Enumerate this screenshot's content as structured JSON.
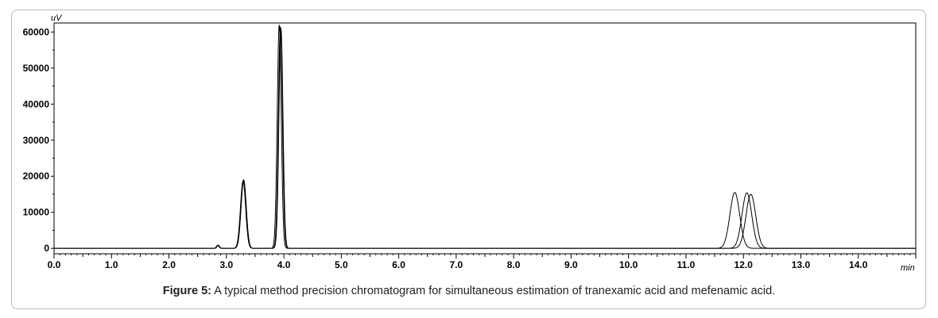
{
  "caption": {
    "label": "Figure 5:",
    "text": " A typical method precision chromatogram for simultaneous estimation of tranexamic acid and mefenamic acid."
  },
  "chart_data": {
    "type": "line",
    "title": "",
    "xlabel": "min",
    "ylabel": "uV",
    "xlim": [
      0,
      15
    ],
    "ylim": [
      -1500,
      62500
    ],
    "x_ticks": [
      "0.0",
      "1.0",
      "2.0",
      "3.0",
      "4.0",
      "5.0",
      "6.0",
      "7.0",
      "8.0",
      "9.0",
      "10.0",
      "11.0",
      "12.0",
      "13.0",
      "14.0"
    ],
    "y_ticks": [
      "0",
      "10000",
      "20000",
      "30000",
      "40000",
      "50000",
      "60000"
    ],
    "grid": false,
    "line_color": "#000000",
    "series": [
      {
        "peaks": [
          {
            "rt": 2.85,
            "height": 900
          },
          {
            "rt": 3.3,
            "height": 19000
          },
          {
            "rt": 3.92,
            "height": 62000
          },
          {
            "rt": 11.85,
            "height": 15500
          }
        ]
      },
      {
        "peaks": [
          {
            "rt": 2.85,
            "height": 800
          },
          {
            "rt": 3.29,
            "height": 18700
          },
          {
            "rt": 3.94,
            "height": 61500
          },
          {
            "rt": 12.06,
            "height": 15400
          }
        ]
      },
      {
        "peaks": [
          {
            "rt": 2.86,
            "height": 850
          },
          {
            "rt": 3.3,
            "height": 18900
          },
          {
            "rt": 3.95,
            "height": 61000
          },
          {
            "rt": 12.13,
            "height": 15000
          }
        ]
      }
    ]
  }
}
